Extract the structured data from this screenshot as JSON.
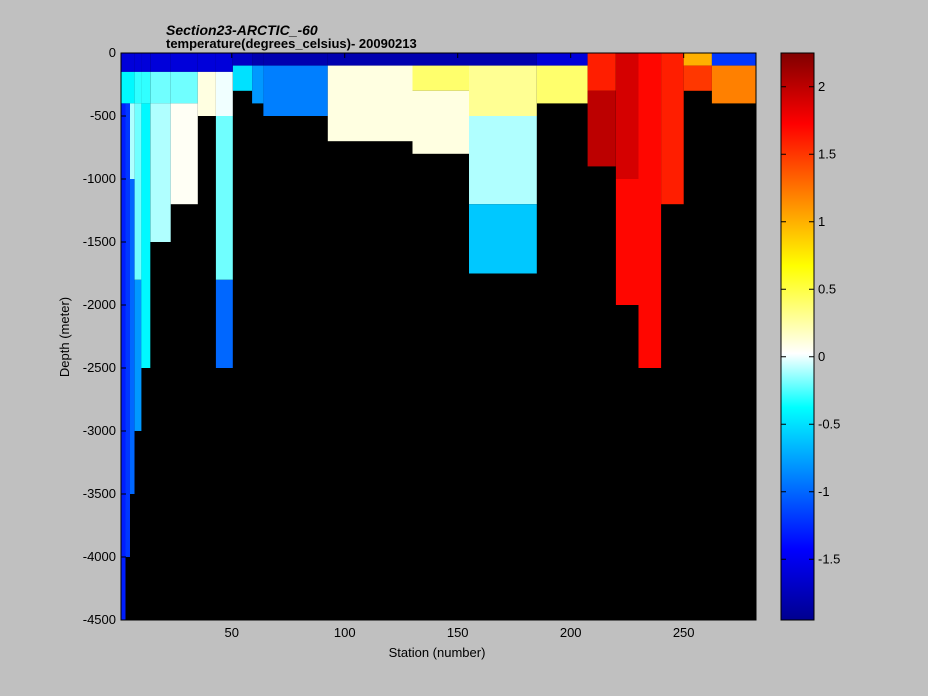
{
  "figure": {
    "title_line1": "Section23-ARCTIC_-60",
    "title_line2": "temperature(degrees_celsius)- 20090213",
    "background_color": "#c0c0c0",
    "plot_background_color": "#000000"
  },
  "chart_data": {
    "type": "heatmap",
    "title": "Section23-ARCTIC_-60",
    "subtitle": "temperature(degrees_celsius)- 20090213",
    "xlabel": "Station (number)",
    "ylabel": "Depth (meter)",
    "xlim": [
      1,
      282
    ],
    "ylim": [
      -4500,
      0
    ],
    "xticks": [
      50,
      100,
      150,
      200,
      250
    ],
    "yticks": [
      0,
      -500,
      -1000,
      -1500,
      -2000,
      -2500,
      -3000,
      -3500,
      -4000,
      -4500
    ],
    "grid": false,
    "no_data_color": "#000000",
    "colorbar": {
      "colormap": "jet",
      "clim": [
        -1.95,
        2.25
      ],
      "ticks": [
        2,
        1.5,
        1,
        0.5,
        0,
        -0.5,
        -1,
        -1.5
      ],
      "tick_labels": [
        "2",
        "1.5",
        "1",
        "0.5",
        "0",
        "-0.5",
        "-1",
        "-1.5"
      ],
      "location": "right"
    },
    "columns": [
      {
        "station": 2,
        "bottom_depth": -4500,
        "temperature": [
          {
            "to_depth": -150,
            "value": -1.6
          },
          {
            "to_depth": -400,
            "value": -0.4
          },
          {
            "to_depth": -4500,
            "value": -1.3
          }
        ]
      },
      {
        "station": 4,
        "bottom_depth": -4000,
        "temperature": [
          {
            "to_depth": -150,
            "value": -1.6
          },
          {
            "to_depth": -400,
            "value": -0.4
          },
          {
            "to_depth": -4000,
            "value": -1.2
          }
        ]
      },
      {
        "station": 6,
        "bottom_depth": -3500,
        "temperature": [
          {
            "to_depth": -150,
            "value": -1.6
          },
          {
            "to_depth": -400,
            "value": -0.4
          },
          {
            "to_depth": -1000,
            "value": -0.1
          },
          {
            "to_depth": -3500,
            "value": -1.0
          }
        ]
      },
      {
        "station": 8,
        "bottom_depth": -3000,
        "temperature": [
          {
            "to_depth": -150,
            "value": -1.6
          },
          {
            "to_depth": -400,
            "value": -0.3
          },
          {
            "to_depth": -1800,
            "value": -0.2
          },
          {
            "to_depth": -3000,
            "value": -0.8
          }
        ]
      },
      {
        "station": 12,
        "bottom_depth": -2500,
        "temperature": [
          {
            "to_depth": -150,
            "value": -1.6
          },
          {
            "to_depth": -400,
            "value": -0.3
          },
          {
            "to_depth": -2500,
            "value": -0.4
          }
        ]
      },
      {
        "station": 16,
        "bottom_depth": -1500,
        "temperature": [
          {
            "to_depth": -150,
            "value": -1.6
          },
          {
            "to_depth": -400,
            "value": -0.2
          },
          {
            "to_depth": -1500,
            "value": -0.1
          }
        ]
      },
      {
        "station": 30,
        "bottom_depth": -1200,
        "temperature": [
          {
            "to_depth": -150,
            "value": -1.6
          },
          {
            "to_depth": -400,
            "value": -0.2
          },
          {
            "to_depth": -1200,
            "value": 0.05
          }
        ]
      },
      {
        "station": 40,
        "bottom_depth": -500,
        "temperature": [
          {
            "to_depth": -150,
            "value": -1.6
          },
          {
            "to_depth": -500,
            "value": 0.1
          }
        ]
      },
      {
        "station": 46,
        "bottom_depth": -2500,
        "temperature": [
          {
            "to_depth": -150,
            "value": -1.6
          },
          {
            "to_depth": -500,
            "value": 0.0
          },
          {
            "to_depth": -1800,
            "value": -0.2
          },
          {
            "to_depth": -2500,
            "value": -1.0
          }
        ]
      },
      {
        "station": 55,
        "bottom_depth": -300,
        "temperature": [
          {
            "to_depth": -100,
            "value": -1.7
          },
          {
            "to_depth": -300,
            "value": -0.5
          }
        ]
      },
      {
        "station": 63,
        "bottom_depth": -400,
        "temperature": [
          {
            "to_depth": -100,
            "value": -1.8
          },
          {
            "to_depth": -400,
            "value": -0.8
          }
        ]
      },
      {
        "station": 65,
        "bottom_depth": -500,
        "temperature": [
          {
            "to_depth": -100,
            "value": -1.8
          },
          {
            "to_depth": -500,
            "value": -0.9
          }
        ]
      },
      {
        "station": 120,
        "bottom_depth": -700,
        "temperature": [
          {
            "to_depth": -100,
            "value": -1.8
          },
          {
            "to_depth": -700,
            "value": 0.1
          }
        ]
      },
      {
        "station": 140,
        "bottom_depth": -800,
        "temperature": [
          {
            "to_depth": -100,
            "value": -1.8
          },
          {
            "to_depth": -300,
            "value": 0.4
          },
          {
            "to_depth": -800,
            "value": 0.1
          }
        ]
      },
      {
        "station": 170,
        "bottom_depth": -1750,
        "temperature": [
          {
            "to_depth": -100,
            "value": -1.8
          },
          {
            "to_depth": -500,
            "value": 0.3
          },
          {
            "to_depth": -1200,
            "value": -0.1
          },
          {
            "to_depth": -1750,
            "value": -0.6
          }
        ]
      },
      {
        "station": 200,
        "bottom_depth": -400,
        "temperature": [
          {
            "to_depth": -100,
            "value": -1.6
          },
          {
            "to_depth": -400,
            "value": 0.4
          }
        ]
      },
      {
        "station": 215,
        "bottom_depth": -900,
        "temperature": [
          {
            "to_depth": -300,
            "value": 1.6
          },
          {
            "to_depth": -900,
            "value": 2.0
          }
        ]
      },
      {
        "station": 225,
        "bottom_depth": -2000,
        "temperature": [
          {
            "to_depth": -1000,
            "value": 1.9
          },
          {
            "to_depth": -2000,
            "value": 1.7
          }
        ]
      },
      {
        "station": 235,
        "bottom_depth": -2500,
        "temperature": [
          {
            "to_depth": -2500,
            "value": 1.7
          }
        ]
      },
      {
        "station": 245,
        "bottom_depth": -1200,
        "temperature": [
          {
            "to_depth": -1200,
            "value": 1.6
          }
        ]
      },
      {
        "station": 255,
        "bottom_depth": -300,
        "temperature": [
          {
            "to_depth": -100,
            "value": 1.0
          },
          {
            "to_depth": -300,
            "value": 1.5
          }
        ]
      },
      {
        "station": 270,
        "bottom_depth": -400,
        "temperature": [
          {
            "to_depth": -100,
            "value": -1.2
          },
          {
            "to_depth": -400,
            "value": 1.2
          }
        ]
      }
    ]
  }
}
